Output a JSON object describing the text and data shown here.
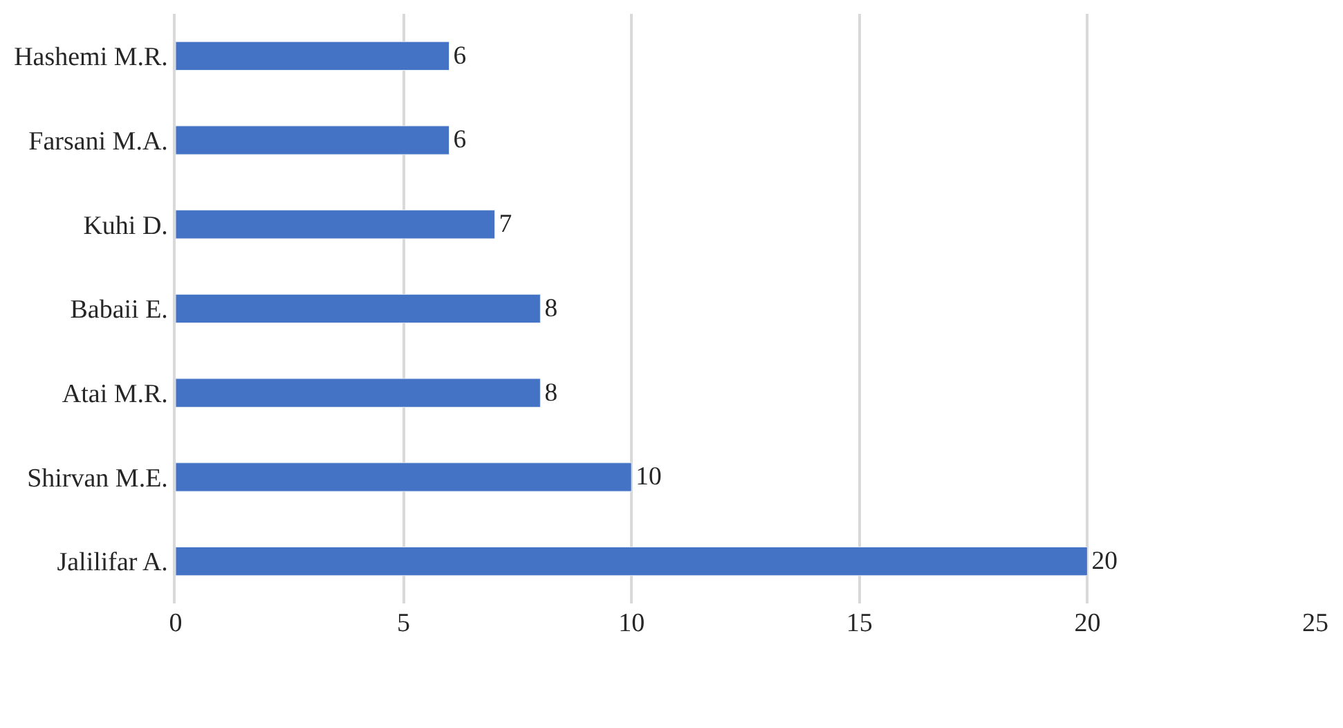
{
  "chart_data": {
    "type": "bar",
    "orientation": "horizontal",
    "categories": [
      "Hashemi M.R.",
      "Farsani M.A.",
      "Kuhi D.",
      "Babaii E.",
      "Atai M.R.",
      "Shirvan M.E.",
      "Jalilifar A."
    ],
    "series": [
      {
        "color": "#4472c4",
        "values": [
          6,
          6,
          7,
          8,
          8,
          10,
          20
        ]
      }
    ],
    "xlim": [
      0,
      25
    ],
    "xticks": [
      0,
      5,
      10,
      15,
      20,
      25
    ],
    "grid": "x",
    "data_labels": true
  }
}
